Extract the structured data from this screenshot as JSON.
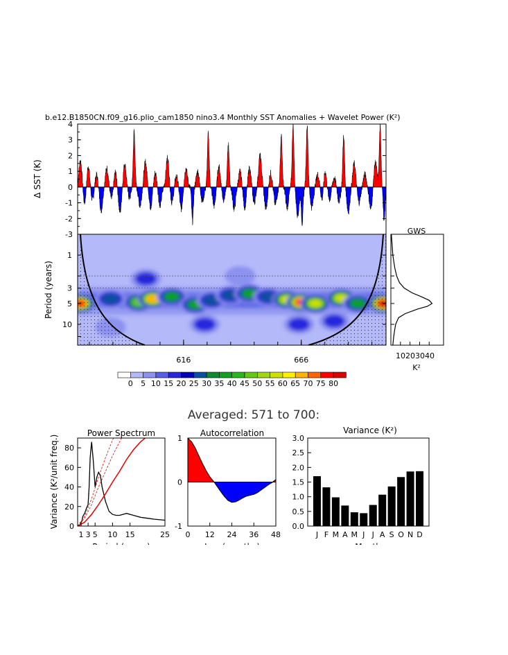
{
  "main_title": "b.e12.B1850CN.f09_g16.plio_cam1850 nino3.4 Monthly SST Anomalies + Wavelet Power (K²)",
  "averaged_title": "Averaged: 571 to 700:",
  "colors": {
    "positive": "#ff0000",
    "negative": "#0000ff"
  },
  "chart_data": [
    {
      "id": "sst_anomalies",
      "type": "area",
      "ylabel": "Δ SST (K)",
      "ylim": [
        -3,
        4
      ],
      "yticks": [
        -3,
        -2,
        -1,
        0,
        1,
        2,
        3,
        4
      ],
      "xlim": [
        571,
        702
      ],
      "peaks": [
        {
          "x": 572.2,
          "y": 1.7
        },
        {
          "x": 574.0,
          "y": -1.1
        },
        {
          "x": 575.5,
          "y": 1.4
        },
        {
          "x": 577.3,
          "y": -0.9
        },
        {
          "x": 579.0,
          "y": 0.8
        },
        {
          "x": 581.0,
          "y": -1.5
        },
        {
          "x": 583.4,
          "y": 1.2
        },
        {
          "x": 585.5,
          "y": -0.8
        },
        {
          "x": 587.0,
          "y": 1.0
        },
        {
          "x": 589.0,
          "y": -1.6
        },
        {
          "x": 591.0,
          "y": 1.5
        },
        {
          "x": 593.0,
          "y": -0.7
        },
        {
          "x": 595.0,
          "y": 3.6
        },
        {
          "x": 597.5,
          "y": -1.2
        },
        {
          "x": 599.8,
          "y": 1.6
        },
        {
          "x": 602.0,
          "y": -1.3
        },
        {
          "x": 604.0,
          "y": 0.9
        },
        {
          "x": 606.0,
          "y": -1.2
        },
        {
          "x": 609.2,
          "y": 1.9
        },
        {
          "x": 611.0,
          "y": -1.0
        },
        {
          "x": 613.0,
          "y": 0.7
        },
        {
          "x": 615.0,
          "y": -1.4
        },
        {
          "x": 617.0,
          "y": 1.2
        },
        {
          "x": 619.8,
          "y": -2.2
        },
        {
          "x": 622.0,
          "y": 1.0
        },
        {
          "x": 624.0,
          "y": -0.9
        },
        {
          "x": 626.5,
          "y": 3.4
        },
        {
          "x": 629.0,
          "y": -1.2
        },
        {
          "x": 631.0,
          "y": 1.3
        },
        {
          "x": 633.0,
          "y": -0.8
        },
        {
          "x": 635.0,
          "y": 2.8
        },
        {
          "x": 637.5,
          "y": -1.4
        },
        {
          "x": 640.0,
          "y": 1.0
        },
        {
          "x": 642.0,
          "y": -1.3
        },
        {
          "x": 644.0,
          "y": 1.2
        },
        {
          "x": 646.0,
          "y": -1.0
        },
        {
          "x": 648.5,
          "y": 2.0
        },
        {
          "x": 651.0,
          "y": -1.4
        },
        {
          "x": 653.0,
          "y": 0.9
        },
        {
          "x": 655.0,
          "y": -1.1
        },
        {
          "x": 657.5,
          "y": 3.3
        },
        {
          "x": 660.0,
          "y": -1.3
        },
        {
          "x": 662.5,
          "y": 4.0
        },
        {
          "x": 664.5,
          "y": -1.8
        },
        {
          "x": 666.4,
          "y": -2.3
        },
        {
          "x": 668.5,
          "y": 4.0
        },
        {
          "x": 670.5,
          "y": -1.3
        },
        {
          "x": 673.0,
          "y": 0.8
        },
        {
          "x": 675.0,
          "y": -1.0
        },
        {
          "x": 676.0,
          "y": 1.2
        },
        {
          "x": 678.0,
          "y": -0.8
        },
        {
          "x": 680.0,
          "y": 0.6
        },
        {
          "x": 682.0,
          "y": -0.9
        },
        {
          "x": 684.0,
          "y": 3.3
        },
        {
          "x": 686.0,
          "y": -1.6
        },
        {
          "x": 688.5,
          "y": 1.5
        },
        {
          "x": 690.5,
          "y": -1.0
        },
        {
          "x": 693.0,
          "y": 0.8
        },
        {
          "x": 695.5,
          "y": -1.4
        },
        {
          "x": 697.5,
          "y": 1.6
        },
        {
          "x": 699.5,
          "y": 3.8
        },
        {
          "x": 701.2,
          "y": -2.2
        }
      ]
    },
    {
      "id": "wavelet_power",
      "type": "heatmap",
      "ylabel": "Period (years)",
      "yticks": [
        1,
        2,
        3,
        5,
        10
      ],
      "yticklabels": [
        "1",
        "",
        "3",
        "5",
        "10"
      ],
      "ylim": [
        0.5,
        20
      ],
      "xticks": [
        616,
        666
      ],
      "xlim": [
        571,
        702
      ],
      "levels": [
        0,
        5,
        10,
        15,
        20,
        25,
        30,
        35,
        40,
        45,
        50,
        55,
        60,
        65,
        70,
        75,
        80
      ],
      "level_colors": [
        "#ffffff",
        "#b4b9f9",
        "#8c92ef",
        "#5660e6",
        "#2828dc",
        "#0000bb",
        "#0a4fa0",
        "#108a32",
        "#11a020",
        "#28b81e",
        "#64c814",
        "#a0d80f",
        "#cde000",
        "#fff000",
        "#ffb400",
        "#ff6400",
        "#ff0000",
        "#dd0000"
      ],
      "significance_periods": [
        2,
        3
      ],
      "blobs": [
        {
          "x": 572,
          "p": 5.0,
          "a": 75
        },
        {
          "x": 585,
          "p": 4.3,
          "a": 28
        },
        {
          "x": 597,
          "p": 4.8,
          "a": 52
        },
        {
          "x": 603,
          "p": 4.3,
          "a": 70
        },
        {
          "x": 611,
          "p": 4.0,
          "a": 38
        },
        {
          "x": 621,
          "p": 5.2,
          "a": 42
        },
        {
          "x": 628,
          "p": 4.5,
          "a": 30
        },
        {
          "x": 636,
          "p": 3.8,
          "a": 32
        },
        {
          "x": 644,
          "p": 3.6,
          "a": 40
        },
        {
          "x": 652,
          "p": 4.0,
          "a": 30
        },
        {
          "x": 660,
          "p": 4.4,
          "a": 55
        },
        {
          "x": 666,
          "p": 4.8,
          "a": 80
        },
        {
          "x": 672,
          "p": 5.0,
          "a": 58
        },
        {
          "x": 683,
          "p": 4.2,
          "a": 62
        },
        {
          "x": 690,
          "p": 5.0,
          "a": 42
        },
        {
          "x": 701,
          "p": 5.0,
          "a": 85
        },
        {
          "x": 625,
          "p": 10,
          "a": 20
        },
        {
          "x": 665,
          "p": 10,
          "a": 18
        },
        {
          "x": 600,
          "p": 2.2,
          "a": 15
        },
        {
          "x": 640,
          "p": 2.0,
          "a": 12
        },
        {
          "x": 680,
          "p": 9,
          "a": 16
        },
        {
          "x": 585,
          "p": 11,
          "a": 14
        }
      ]
    },
    {
      "id": "gws",
      "type": "line",
      "title": "GWS",
      "xlabel": "K²",
      "xticks": [
        10,
        20,
        30,
        40
      ],
      "xticklabels": [
        "10",
        "20",
        "30",
        "40"
      ],
      "xlim": [
        0,
        55
      ],
      "period": [
        0.5,
        1,
        1.5,
        2,
        2.5,
        3,
        3.5,
        4,
        4.5,
        5,
        5.5,
        6,
        7,
        8,
        10,
        12,
        15,
        20
      ],
      "power": [
        0.5,
        2,
        4,
        6,
        9,
        14,
        22,
        32,
        40,
        43,
        38,
        28,
        15,
        8,
        5,
        4,
        3,
        2
      ]
    },
    {
      "id": "power_spectrum",
      "type": "line",
      "title": "Power Spectrum",
      "xlabel": "Period (years)",
      "ylabel": "Variance (K²/unit freq.)",
      "xticks": [
        1,
        3,
        5,
        10,
        15,
        25
      ],
      "xticklabels": [
        "1",
        "3",
        "5",
        "10",
        "15",
        "25"
      ],
      "xlim": [
        0,
        25
      ],
      "ylim": [
        0,
        90
      ],
      "yticks": [
        0,
        20,
        40,
        60,
        80
      ],
      "series": [
        {
          "style": "black",
          "x": [
            0.5,
            1.2,
            1.5,
            2,
            2.5,
            3,
            3.3,
            3.6,
            4,
            4.5,
            5,
            5.5,
            6,
            6.5,
            7,
            8,
            9,
            10,
            11,
            12,
            13,
            14,
            16,
            18,
            20,
            22,
            25
          ],
          "y": [
            0,
            5,
            10,
            13,
            18,
            22,
            40,
            70,
            86,
            66,
            40,
            50,
            55,
            52,
            40,
            25,
            15,
            12,
            11,
            11,
            12,
            13,
            11,
            9,
            8,
            7,
            6
          ]
        },
        {
          "style": "red",
          "x": [
            0,
            2,
            4,
            6,
            8,
            10,
            12,
            14,
            16,
            18,
            20
          ],
          "y": [
            0,
            4,
            12,
            22,
            33,
            45,
            56,
            68,
            78,
            86,
            92
          ]
        },
        {
          "style": "red-dashed",
          "x": [
            0,
            2,
            4,
            6,
            8,
            10,
            12,
            14
          ],
          "y": [
            0,
            8,
            22,
            40,
            56,
            72,
            86,
            100
          ]
        },
        {
          "style": "red-dashed",
          "x": [
            0,
            2,
            4,
            6,
            8,
            10,
            12
          ],
          "y": [
            0,
            10,
            28,
            50,
            70,
            88,
            102
          ]
        }
      ]
    },
    {
      "id": "autocorrelation",
      "type": "area",
      "title": "Autocorrelation",
      "xlabel": "Lag (months)",
      "xticks": [
        0,
        12,
        24,
        36,
        48
      ],
      "yticks": [
        -1,
        0,
        1
      ],
      "ylim": [
        -1,
        1
      ],
      "xlim": [
        0,
        48
      ],
      "x": [
        0,
        2,
        4,
        6,
        8,
        10,
        12,
        14,
        16,
        18,
        20,
        22,
        24,
        26,
        28,
        30,
        32,
        34,
        36,
        38,
        40,
        42,
        44,
        46,
        48
      ],
      "y": [
        1,
        0.92,
        0.78,
        0.6,
        0.42,
        0.26,
        0.12,
        0.02,
        -0.1,
        -0.22,
        -0.33,
        -0.42,
        -0.46,
        -0.45,
        -0.41,
        -0.36,
        -0.32,
        -0.3,
        -0.28,
        -0.24,
        -0.18,
        -0.12,
        -0.06,
        -0.01,
        0.06
      ]
    },
    {
      "id": "variance",
      "type": "bar",
      "title": "Variance (K²)",
      "xlabel": "Month",
      "categories": [
        "J",
        "F",
        "M",
        "A",
        "M",
        "J",
        "J",
        "A",
        "S",
        "O",
        "N",
        "D"
      ],
      "values": [
        1.7,
        1.32,
        0.98,
        0.7,
        0.47,
        0.44,
        0.72,
        1.07,
        1.35,
        1.67,
        1.86,
        1.87
      ],
      "ylim": [
        0,
        3
      ],
      "yticks": [
        "0.0",
        "0.5",
        "1.0",
        "1.5",
        "2.0",
        "2.5",
        "3.0"
      ]
    }
  ]
}
